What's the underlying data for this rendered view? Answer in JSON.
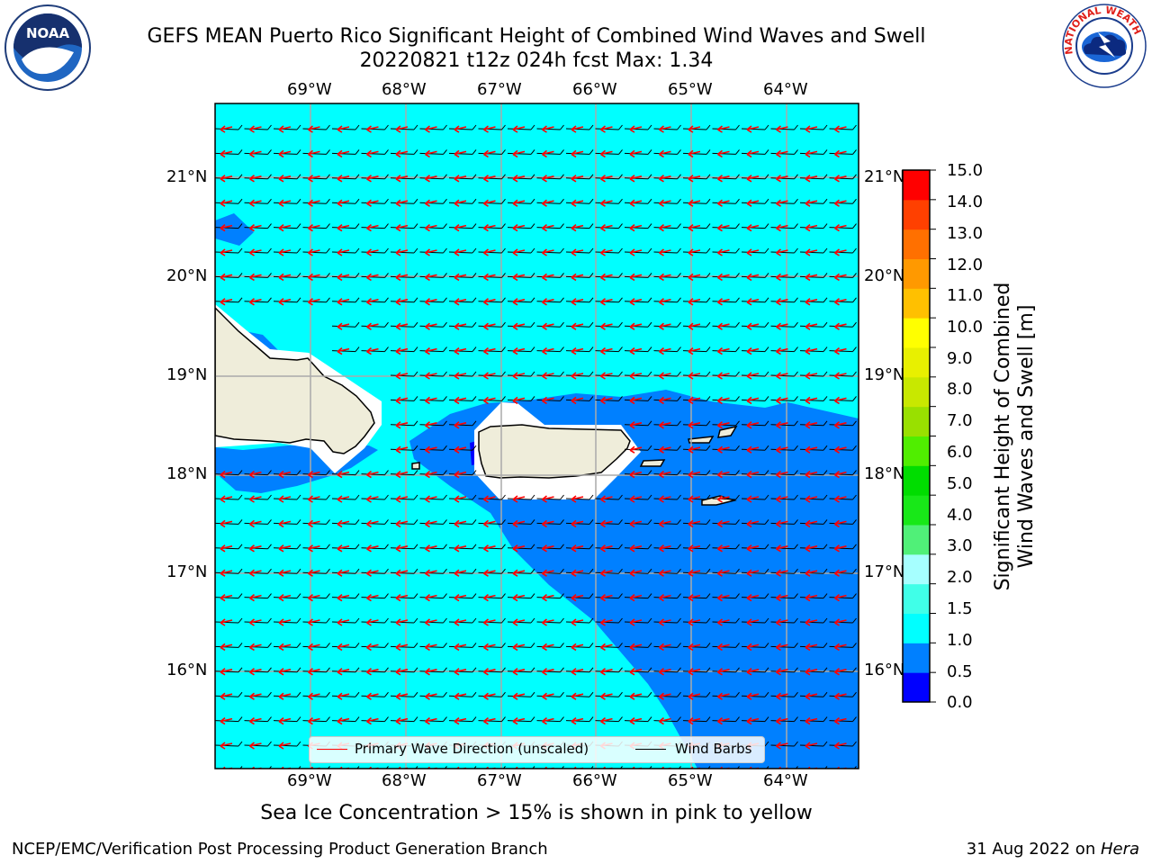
{
  "header": {
    "title_line1": "GEFS MEAN Puerto Rico Significant Height of Combined Wind Waves and Swell",
    "title_line2": "20220821 t12z 024h fcst   Max: 1.34"
  },
  "logos": {
    "left_text": "NOAA",
    "right_text": "NATIONAL WEATHER SERVICE"
  },
  "map": {
    "lon_labels": [
      "69°W",
      "68°W",
      "67°W",
      "66°W",
      "65°W",
      "64°W"
    ],
    "lat_labels": [
      "21°N",
      "20°N",
      "19°N",
      "18°N",
      "17°N",
      "16°N"
    ],
    "colors": {
      "ocean_light": "#00ffff",
      "ocean_mid": "#0080ff",
      "ocean_dark": "#0000ff",
      "land": "#efedda",
      "wave_arrow": "#ff0000",
      "wind_barb": "#000000"
    }
  },
  "legend": {
    "wave_label": "Primary Wave Direction (unscaled)",
    "wind_label": "Wind Barbs"
  },
  "colorbar": {
    "ticks": [
      "15.0",
      "14.0",
      "13.0",
      "12.0",
      "11.0",
      "10.0",
      "9.0",
      "8.0",
      "7.0",
      "6.0",
      "5.0",
      "4.0",
      "3.0",
      "2.0",
      "1.5",
      "1.0",
      "0.5",
      "0.0"
    ],
    "colors": [
      "#0000ff",
      "#0080ff",
      "#00ffff",
      "#40ffe8",
      "#a6ffff",
      "#50f078",
      "#18e818",
      "#00dd00",
      "#50ee00",
      "#99e000",
      "#c8e800",
      "#e8f000",
      "#ffff00",
      "#ffc000",
      "#ff9900",
      "#ff7000",
      "#ff4000",
      "#ff0000"
    ],
    "label_line1": "Significant Height of Combined",
    "label_line2": "Wind Waves and Swell [m]"
  },
  "caption": "Sea Ice Concentration > 15% is shown in pink to yellow",
  "footer": {
    "left": "NCEP/EMC/Verification Post Processing Product Generation Branch",
    "right_prefix": "31 Aug 2022 on ",
    "right_host": "Hera"
  }
}
